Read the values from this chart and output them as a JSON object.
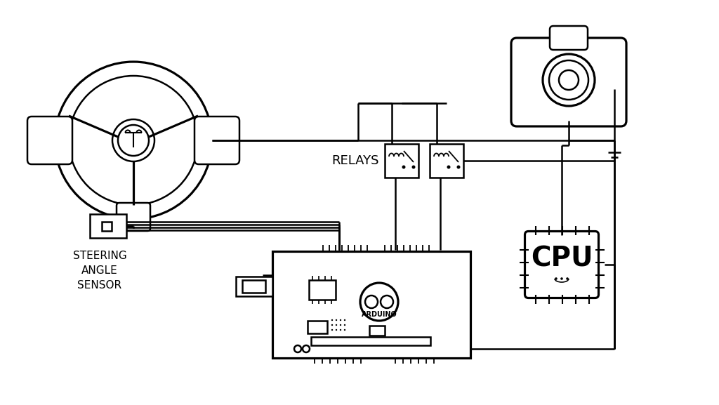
{
  "bg_color": "#ffffff",
  "line_color": "#000000",
  "line_width": 1.8,
  "labels": {
    "steering_angle_sensor": "STEERING\nANGLE\nSENSOR",
    "relays": "RELAYS",
    "cpu": "CPU",
    "arduino": "ARDUINO"
  },
  "font_size_label": 11,
  "font_size_cpu": 28,
  "font_size_relay": 13,
  "font_size_arduino": 7
}
